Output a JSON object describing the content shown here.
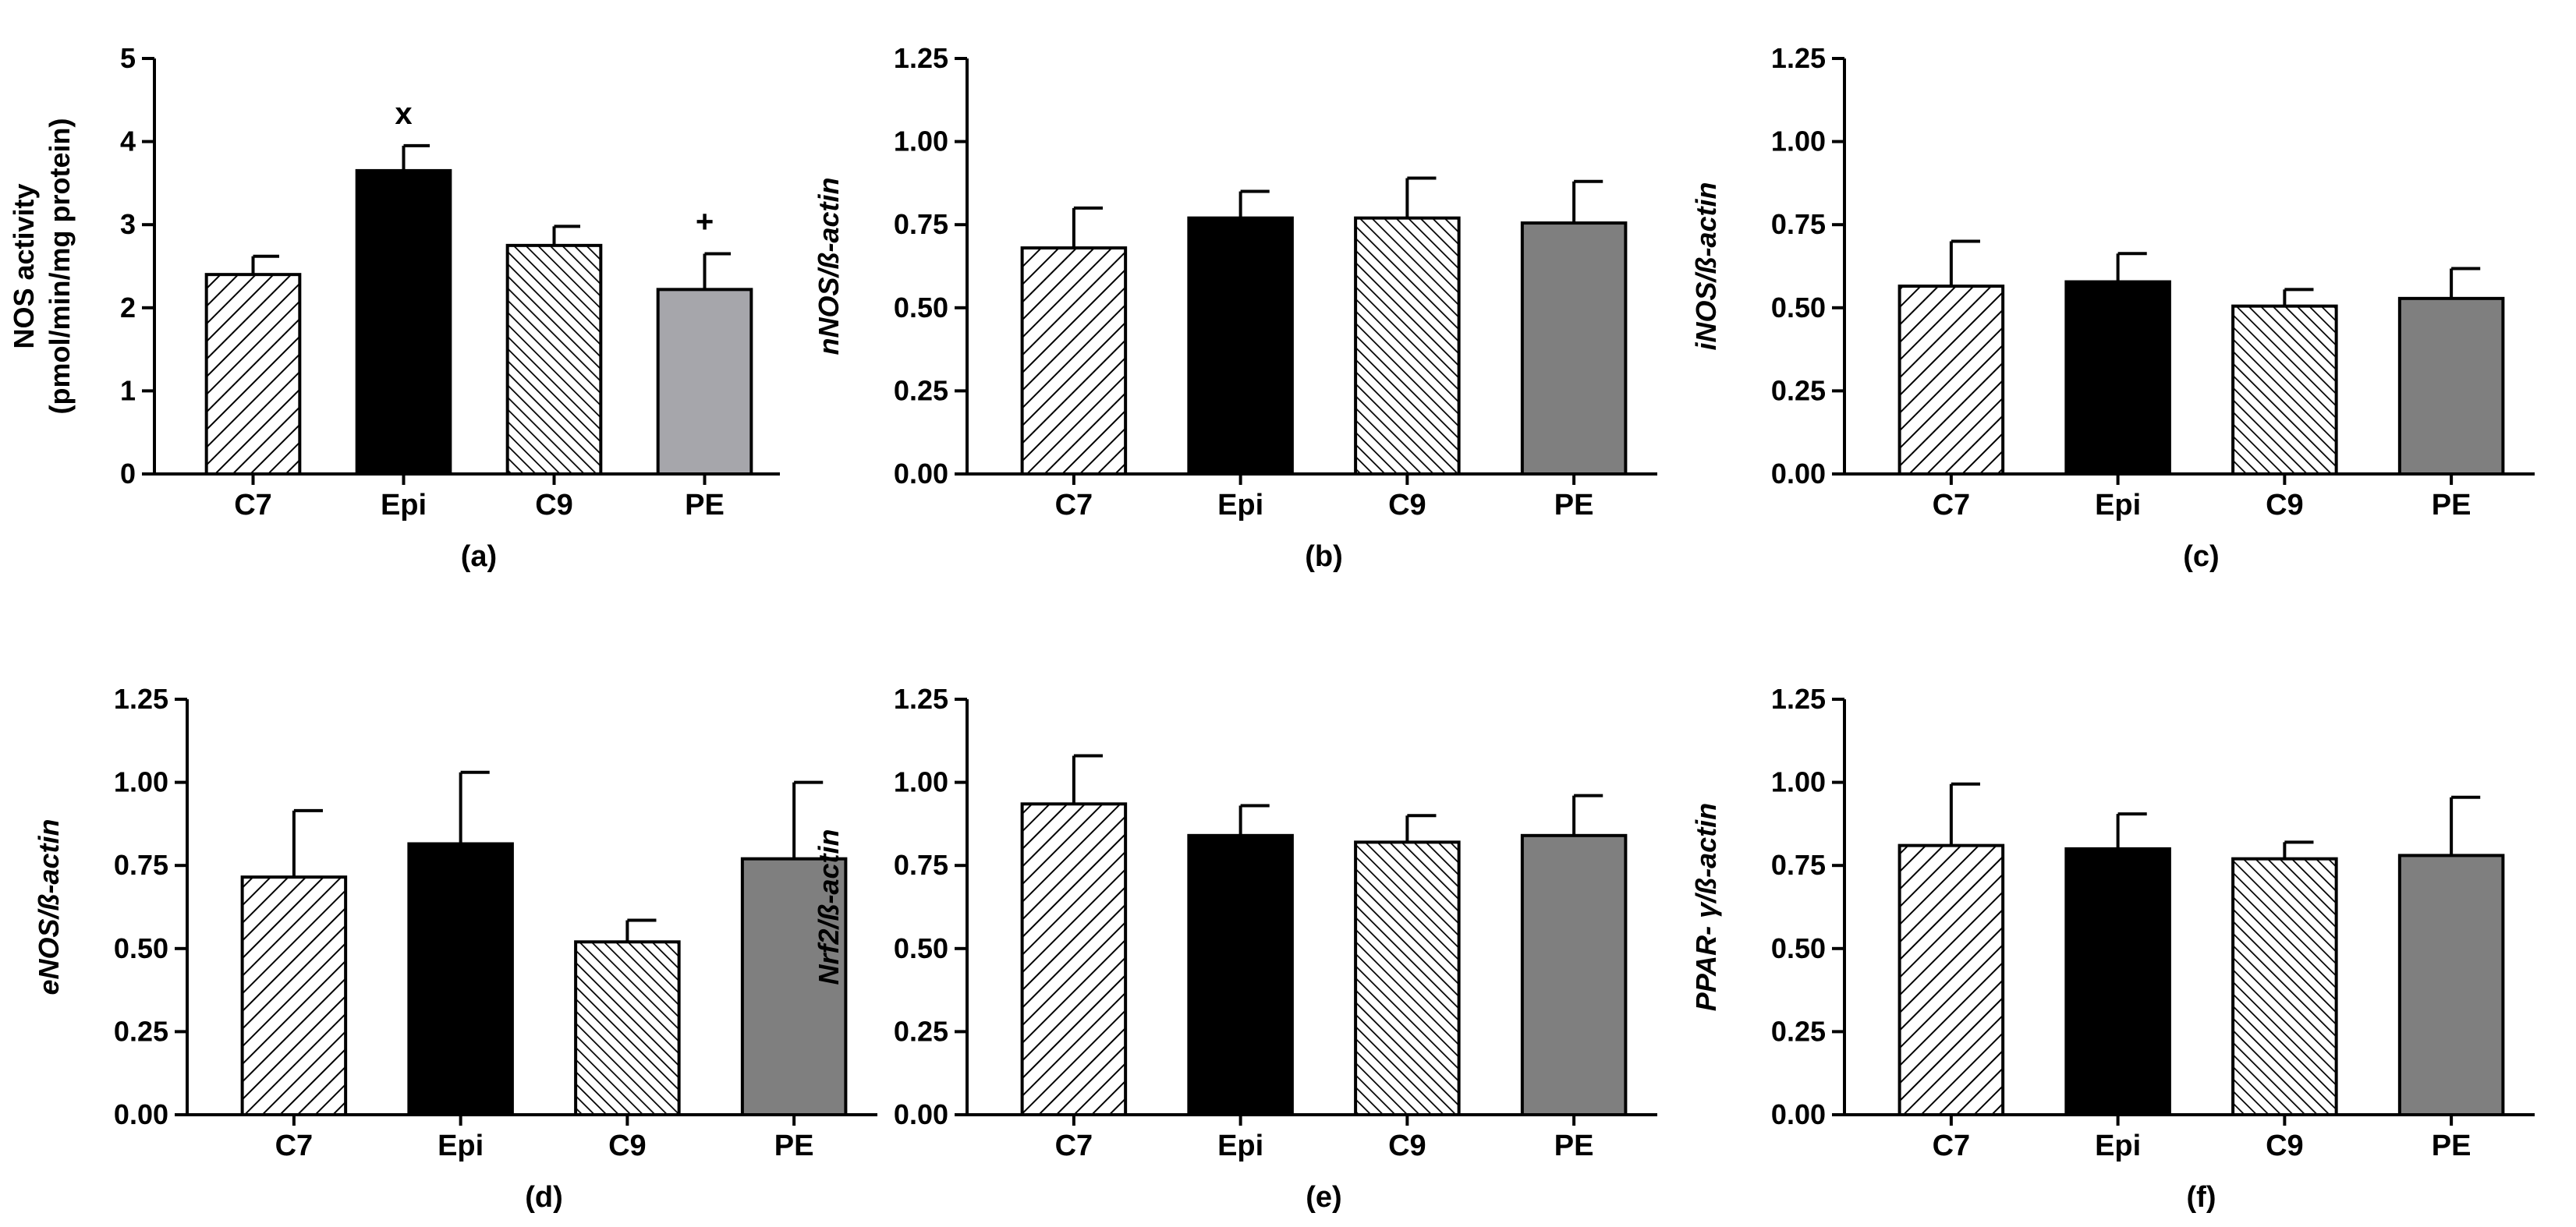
{
  "colors": {
    "C7": "#ffffff",
    "Epi": "#000000",
    "C9": "#ffffff",
    "PE_a": "#a6a6ab",
    "PE": "#7f7f7f",
    "axis": "#000000"
  },
  "chart_data": [
    {
      "type": "bar",
      "panel": "(a)",
      "ylabel_lines": [
        "NOS activity",
        "(pmol/min/mg protein)"
      ],
      "ylabel_italic": false,
      "categories": [
        "C7",
        "Epi",
        "C9",
        "PE"
      ],
      "values": [
        2.4,
        3.65,
        2.75,
        2.22
      ],
      "errors": [
        0.22,
        0.3,
        0.23,
        0.43
      ],
      "annotations": [
        "",
        "x",
        "",
        "+"
      ],
      "ylim": [
        0,
        5
      ],
      "yticks": [
        "0",
        "1",
        "2",
        "3",
        "4",
        "5"
      ]
    },
    {
      "type": "bar",
      "panel": "(b)",
      "ylabel_lines": [
        "nNOS/ß-actin"
      ],
      "ylabel_italic": true,
      "categories": [
        "C7",
        "Epi",
        "C9",
        "PE"
      ],
      "values": [
        0.68,
        0.77,
        0.77,
        0.755
      ],
      "errors": [
        0.12,
        0.08,
        0.12,
        0.125
      ],
      "annotations": [
        "",
        "",
        "",
        ""
      ],
      "ylim": [
        0,
        1.25
      ],
      "yticks": [
        "0.00",
        "0.25",
        "0.50",
        "0.75",
        "1.00",
        "1.25"
      ]
    },
    {
      "type": "bar",
      "panel": "(c)",
      "ylabel_lines": [
        "iNOS/ß-actin"
      ],
      "ylabel_italic": true,
      "categories": [
        "C7",
        "Epi",
        "C9",
        "PE"
      ],
      "values": [
        0.565,
        0.578,
        0.505,
        0.528
      ],
      "errors": [
        0.135,
        0.085,
        0.05,
        0.09
      ],
      "annotations": [
        "",
        "",
        "",
        ""
      ],
      "ylim": [
        0,
        1.25
      ],
      "yticks": [
        "0.00",
        "0.25",
        "0.50",
        "0.75",
        "1.00",
        "1.25"
      ]
    },
    {
      "type": "bar",
      "panel": "(d)",
      "ylabel_lines": [
        "eNOS/ß-actin"
      ],
      "ylabel_italic": true,
      "categories": [
        "C7",
        "Epi",
        "C9",
        "PE"
      ],
      "values": [
        0.715,
        0.815,
        0.52,
        0.77
      ],
      "errors": [
        0.2,
        0.215,
        0.065,
        0.23
      ],
      "annotations": [
        "",
        "",
        "",
        ""
      ],
      "ylim": [
        0,
        1.25
      ],
      "yticks": [
        "0.00",
        "0.25",
        "0.50",
        "0.75",
        "1.00",
        "1.25"
      ]
    },
    {
      "type": "bar",
      "panel": "(e)",
      "ylabel_lines": [
        "Nrf2/ß-actin"
      ],
      "ylabel_italic": true,
      "categories": [
        "C7",
        "Epi",
        "C9",
        "PE"
      ],
      "values": [
        0.935,
        0.84,
        0.82,
        0.84
      ],
      "errors": [
        0.145,
        0.09,
        0.08,
        0.12
      ],
      "annotations": [
        "",
        "",
        "",
        ""
      ],
      "ylim": [
        0,
        1.25
      ],
      "yticks": [
        "0.00",
        "0.25",
        "0.50",
        "0.75",
        "1.00",
        "1.25"
      ]
    },
    {
      "type": "bar",
      "panel": "(f)",
      "ylabel_lines": [
        "PPAR- γ/ß-actin"
      ],
      "ylabel_italic": true,
      "categories": [
        "C7",
        "Epi",
        "C9",
        "PE"
      ],
      "values": [
        0.81,
        0.8,
        0.77,
        0.78
      ],
      "errors": [
        0.185,
        0.105,
        0.05,
        0.175
      ],
      "annotations": [
        "",
        "",
        "",
        ""
      ],
      "ylim": [
        0,
        1.25
      ],
      "yticks": [
        "0.00",
        "0.25",
        "0.50",
        "0.75",
        "1.00",
        "1.25"
      ]
    }
  ]
}
